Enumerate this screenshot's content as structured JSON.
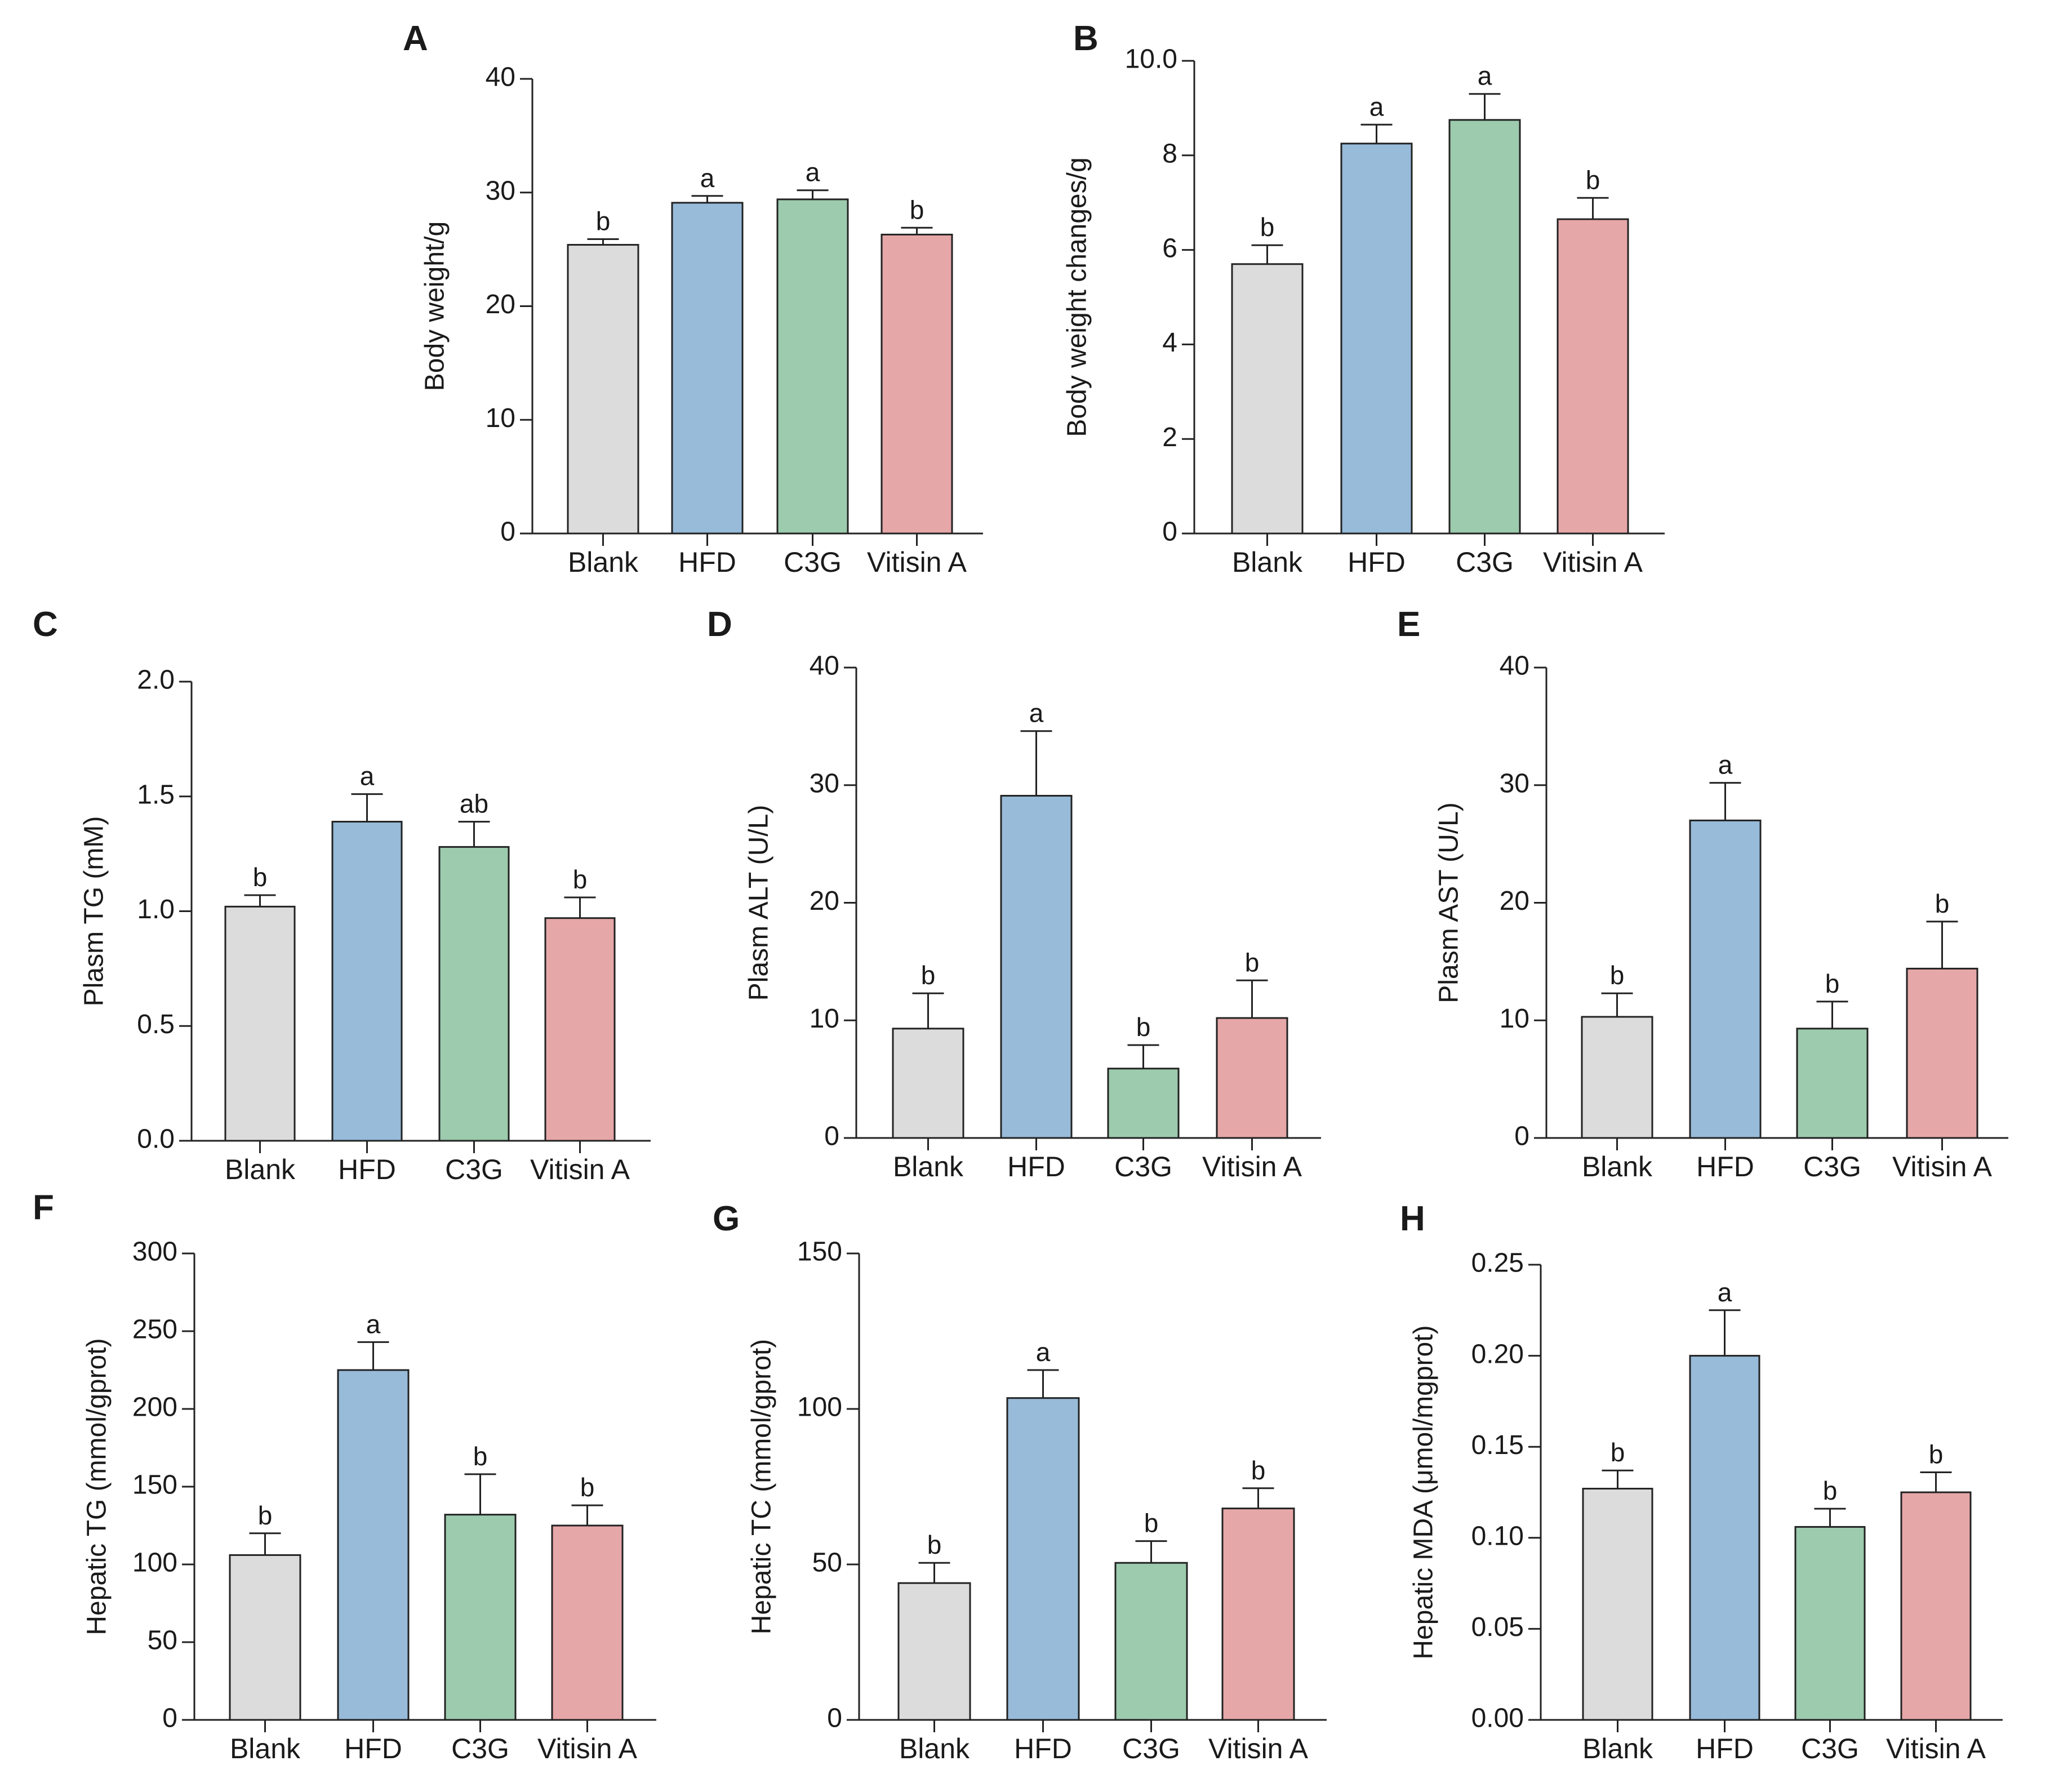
{
  "colors": {
    "Blank": "#dcdcdc",
    "HFD": "#97bbd9",
    "C3G": "#9ccbad",
    "Vitisin A": "#e6a7a8",
    "stroke": "#222222"
  },
  "chart_data": [
    {
      "panel": "A",
      "type": "bar",
      "categories": [
        "Blank",
        "HFD",
        "C3G",
        "Vitisin A"
      ],
      "values": [
        25.4,
        29.1,
        29.4,
        26.3
      ],
      "errors": [
        0.5,
        0.6,
        0.8,
        0.6
      ],
      "significance": [
        "b",
        "a",
        "a",
        "b"
      ],
      "ylabel": "Body weight/g",
      "ylim": [
        0,
        40
      ],
      "yticks": [
        0,
        10,
        20,
        30,
        40
      ],
      "ytick_labels": [
        "0",
        "10",
        "20",
        "30",
        "40"
      ]
    },
    {
      "panel": "B",
      "type": "bar",
      "categories": [
        "Blank",
        "HFD",
        "C3G",
        "Vitisin A"
      ],
      "values": [
        5.7,
        8.25,
        8.75,
        6.65
      ],
      "errors": [
        0.4,
        0.4,
        0.55,
        0.45
      ],
      "significance": [
        "b",
        "a",
        "a",
        "b"
      ],
      "ylabel": "Body weight changes/g",
      "ylim": [
        0,
        10
      ],
      "yticks": [
        0,
        2,
        4,
        6,
        8,
        10
      ],
      "ytick_labels": [
        "0",
        "2",
        "4",
        "6",
        "8",
        "10.0"
      ]
    },
    {
      "panel": "C",
      "type": "bar",
      "categories": [
        "Blank",
        "HFD",
        "C3G",
        "Vitisin A"
      ],
      "values": [
        1.02,
        1.39,
        1.28,
        0.97
      ],
      "errors": [
        0.05,
        0.12,
        0.11,
        0.09
      ],
      "significance": [
        "b",
        "a",
        "ab",
        "b"
      ],
      "ylabel": "Plasm TG (mM)",
      "ylim": [
        0,
        2
      ],
      "yticks": [
        0,
        0.5,
        1,
        1.5,
        2
      ],
      "ytick_labels": [
        "0.0",
        "0.5",
        "1.0",
        "1.5",
        "2.0"
      ]
    },
    {
      "panel": "D",
      "type": "bar",
      "categories": [
        "Blank",
        "HFD",
        "C3G",
        "Vitisin A"
      ],
      "values": [
        9.3,
        29.1,
        5.9,
        10.2
      ],
      "errors": [
        3.0,
        5.5,
        2.0,
        3.2
      ],
      "significance": [
        "b",
        "a",
        "b",
        "b"
      ],
      "ylabel": "Plasm ALT (U/L)",
      "ylim": [
        0,
        40
      ],
      "yticks": [
        0,
        10,
        20,
        30,
        40
      ],
      "ytick_labels": [
        "0",
        "10",
        "20",
        "30",
        "40"
      ]
    },
    {
      "panel": "E",
      "type": "bar",
      "categories": [
        "Blank",
        "HFD",
        "C3G",
        "Vitisin A"
      ],
      "values": [
        10.3,
        27.0,
        9.3,
        14.4
      ],
      "errors": [
        2.0,
        3.2,
        2.3,
        4.0
      ],
      "significance": [
        "b",
        "a",
        "b",
        "b"
      ],
      "ylabel": "Plasm AST (U/L)",
      "ylim": [
        0,
        40
      ],
      "yticks": [
        0,
        10,
        20,
        30,
        40
      ],
      "ytick_labels": [
        "0",
        "10",
        "20",
        "30",
        "40"
      ]
    },
    {
      "panel": "F",
      "type": "bar",
      "categories": [
        "Blank",
        "HFD",
        "C3G",
        "Vitisin A"
      ],
      "values": [
        106,
        225,
        132,
        125
      ],
      "errors": [
        14,
        18,
        26,
        13
      ],
      "significance": [
        "b",
        "a",
        "b",
        "b"
      ],
      "ylabel": "Hepatic TG (mmol/gprot)",
      "ylim": [
        0,
        300
      ],
      "yticks": [
        0,
        50,
        100,
        150,
        200,
        250,
        300
      ],
      "ytick_labels": [
        "0",
        "50",
        "100",
        "150",
        "200",
        "250",
        "300"
      ]
    },
    {
      "panel": "G",
      "type": "bar",
      "categories": [
        "Blank",
        "HFD",
        "C3G",
        "Vitisin A"
      ],
      "values": [
        44,
        103.5,
        50.5,
        68
      ],
      "errors": [
        6.5,
        9,
        7,
        6.5
      ],
      "significance": [
        "b",
        "a",
        "b",
        "b"
      ],
      "ylabel": "Hepatic TC (mmol/gprot)",
      "ylim": [
        0,
        150
      ],
      "yticks": [
        0,
        50,
        100,
        150
      ],
      "ytick_labels": [
        "0",
        "50",
        "100",
        "150"
      ]
    },
    {
      "panel": "H",
      "type": "bar",
      "categories": [
        "Blank",
        "HFD",
        "C3G",
        "Vitisin A"
      ],
      "values": [
        0.127,
        0.2,
        0.106,
        0.125
      ],
      "errors": [
        0.01,
        0.025,
        0.01,
        0.011
      ],
      "significance": [
        "b",
        "a",
        "b",
        "b"
      ],
      "ylabel": "Hepatic MDA (μmol/mgprot)",
      "ylim": [
        0,
        0.25
      ],
      "yticks": [
        0,
        0.05,
        0.1,
        0.15,
        0.2,
        0.25
      ],
      "ytick_labels": [
        "0.00",
        "0.05",
        "0.10",
        "0.15",
        "0.20",
        "0.25"
      ]
    }
  ]
}
